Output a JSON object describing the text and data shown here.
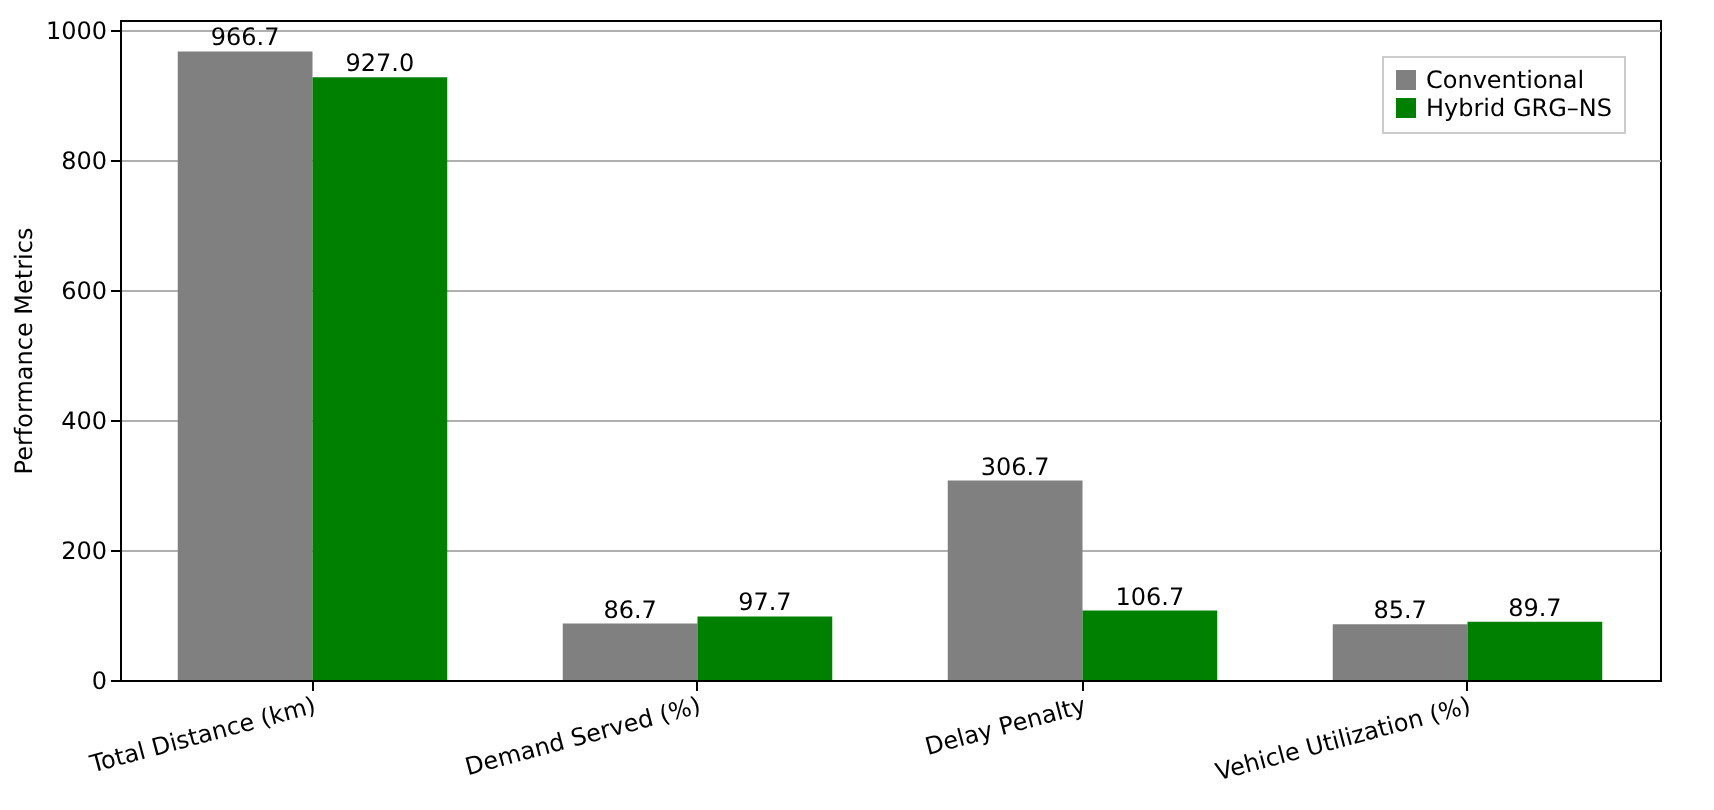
{
  "chart_data": {
    "type": "bar",
    "ylabel": "Performance Metrics",
    "categories": [
      "Total Distance (km)",
      "Demand Served (%)",
      "Delay Penalty",
      "Vehicle Utilization (%)"
    ],
    "series": [
      {
        "name": "Conventional",
        "color": "#808080",
        "values": [
          966.7,
          86.7,
          306.7,
          85.7
        ],
        "value_labels": [
          "966.7",
          "86.7",
          "306.7",
          "85.7"
        ]
      },
      {
        "name": "Hybrid GRG–NS",
        "color": "#008000",
        "values": [
          927,
          97.7,
          106.7,
          89.7
        ],
        "value_labels": [
          "927.0",
          "97.7",
          "106.7",
          "89.7"
        ]
      }
    ],
    "ylim": [
      0,
      1015
    ],
    "yticks": [
      0,
      200,
      400,
      600,
      800,
      1000
    ],
    "grid": "y",
    "legend": "top right"
  }
}
